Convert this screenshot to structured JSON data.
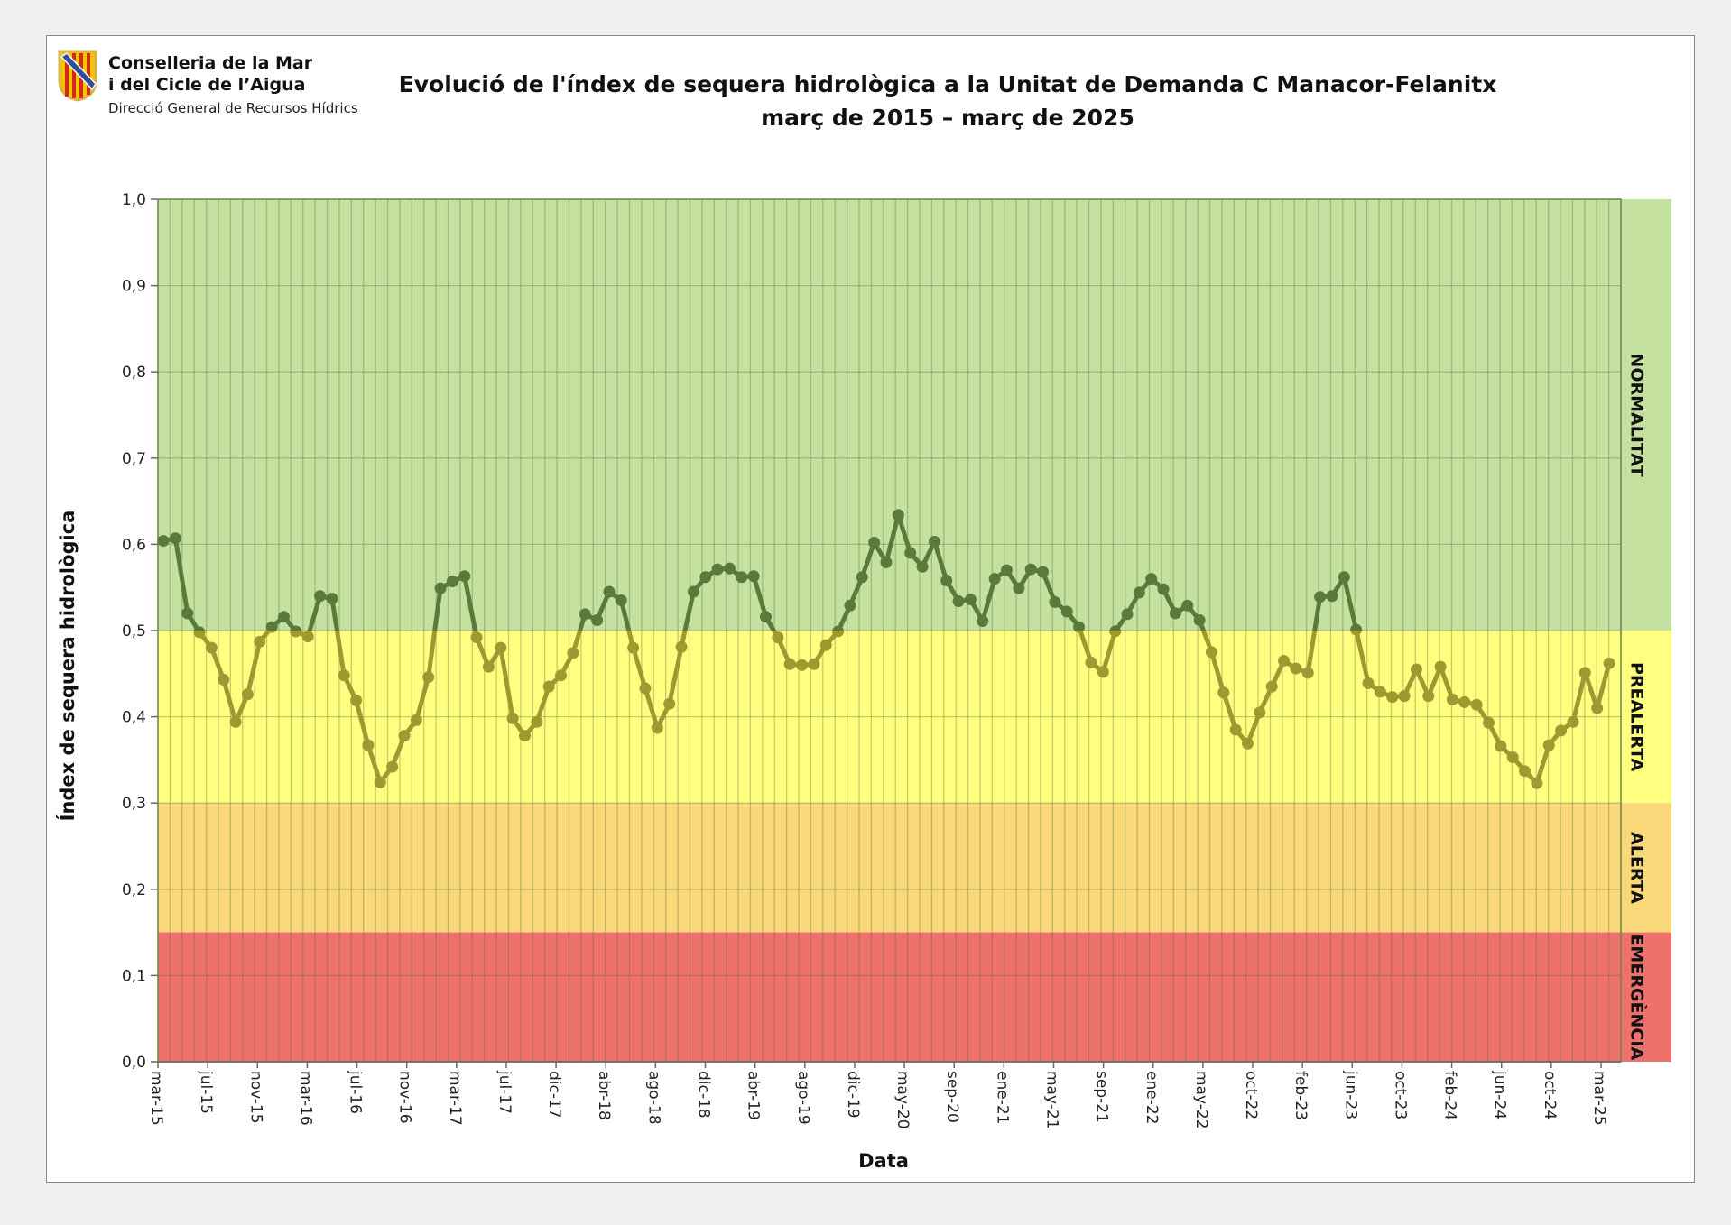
{
  "header": {
    "org_line1": "Conselleria de la Mar",
    "org_line2": "i del Cicle de l’Aigua",
    "org_sub": "Direcció General de Recursos Hídrics"
  },
  "chart_data": {
    "type": "line",
    "title": "Evolució de l'índex de sequera hidrològica a la Unitat de Demanda C Manacor-Felanitx",
    "subtitle": "març de 2015 – març de 2025",
    "xlabel": "Data",
    "ylabel": "Índex de sequera hidrològica",
    "ylim": [
      0,
      1
    ],
    "yticks": [
      "0,0",
      "0,1",
      "0,2",
      "0,3",
      "0,4",
      "0,5",
      "0,6",
      "0,7",
      "0,8",
      "0,9",
      "1,0"
    ],
    "xtick_labels": [
      "mar-15",
      "jul-15",
      "nov-15",
      "mar-16",
      "jul-16",
      "nov-16",
      "mar-17",
      "jul-17",
      "dic-17",
      "abr-18",
      "ago-18",
      "dic-18",
      "abr-19",
      "ago-19",
      "dic-19",
      "may-20",
      "sep-20",
      "ene-21",
      "may-21",
      "sep-21",
      "ene-22",
      "may-22",
      "oct-22",
      "feb-23",
      "jun-23",
      "oct-23",
      "feb-24",
      "jun-24",
      "oct-24",
      "mar-25"
    ],
    "x_start": "mar-15",
    "x_end": "mar-25",
    "x_step": "month",
    "grid": true,
    "values": [
      0.604,
      0.607,
      0.52,
      0.498,
      0.48,
      0.443,
      0.394,
      0.426,
      0.487,
      0.504,
      0.516,
      0.499,
      0.493,
      0.54,
      0.537,
      0.448,
      0.419,
      0.367,
      0.324,
      0.342,
      0.378,
      0.396,
      0.446,
      0.549,
      0.557,
      0.563,
      0.492,
      0.458,
      0.48,
      0.398,
      0.378,
      0.394,
      0.435,
      0.448,
      0.474,
      0.519,
      0.512,
      0.545,
      0.535,
      0.48,
      0.433,
      0.387,
      0.415,
      0.481,
      0.545,
      0.562,
      0.571,
      0.572,
      0.562,
      0.563,
      0.516,
      0.492,
      0.461,
      0.46,
      0.461,
      0.483,
      0.499,
      0.529,
      0.562,
      0.602,
      0.579,
      0.634,
      0.59,
      0.574,
      0.603,
      0.558,
      0.534,
      0.536,
      0.511,
      0.56,
      0.57,
      0.549,
      0.571,
      0.568,
      0.533,
      0.522,
      0.504,
      0.463,
      0.452,
      0.499,
      0.519,
      0.544,
      0.56,
      0.548,
      0.52,
      0.529,
      0.512,
      0.475,
      0.428,
      0.385,
      0.369,
      0.405,
      0.435,
      0.465,
      0.456,
      0.451,
      0.539,
      0.54,
      0.562,
      0.501,
      0.439,
      0.429,
      0.423,
      0.424,
      0.455,
      0.424,
      0.458,
      0.42,
      0.417,
      0.414,
      0.393,
      0.366,
      0.353,
      0.337,
      0.323,
      0.367,
      0.384,
      0.394,
      0.451,
      0.41,
      0.462
    ],
    "zones": [
      {
        "name": "NORMALITAT",
        "from": 0.5,
        "to": 1.0,
        "color": "#c5e1a0"
      },
      {
        "name": "PREALERTA",
        "from": 0.3,
        "to": 0.5,
        "color": "#ffff80"
      },
      {
        "name": "ALERTA",
        "from": 0.15,
        "to": 0.3,
        "color": "#f8d878"
      },
      {
        "name": "EMERGÈNCIA",
        "from": 0.0,
        "to": 0.15,
        "color": "#ee716d"
      }
    ],
    "line_color_above": "#5a7a3a",
    "line_color_below": "#9c9a30"
  }
}
